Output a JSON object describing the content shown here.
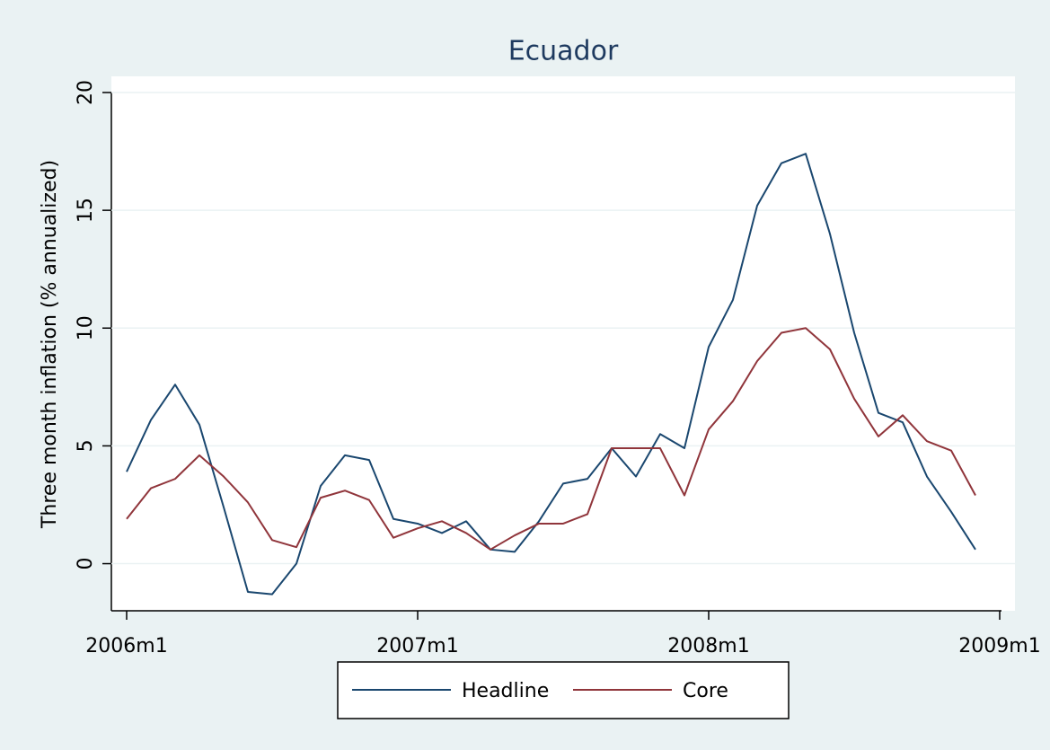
{
  "chart_data": {
    "type": "line",
    "title": "Ecuador",
    "ylabel": "Three month inflation (% annualized)",
    "x": [
      "2006m1",
      "2006m2",
      "2006m3",
      "2006m4",
      "2006m5",
      "2006m6",
      "2006m7",
      "2006m8",
      "2006m9",
      "2006m10",
      "2006m11",
      "2006m12",
      "2007m1",
      "2007m2",
      "2007m3",
      "2007m4",
      "2007m5",
      "2007m6",
      "2007m7",
      "2007m8",
      "2007m9",
      "2007m10",
      "2007m11",
      "2007m12",
      "2008m1",
      "2008m2",
      "2008m3",
      "2008m4",
      "2008m5",
      "2008m6",
      "2008m7",
      "2008m8",
      "2008m9",
      "2008m10",
      "2008m11",
      "2008m12"
    ],
    "series": [
      {
        "name": "Headline",
        "color": "#1a476f",
        "values": [
          3.9,
          6.1,
          7.6,
          5.9,
          2.4,
          -1.2,
          -1.3,
          0.0,
          3.3,
          4.6,
          4.4,
          1.9,
          1.7,
          1.3,
          1.8,
          0.6,
          0.5,
          1.8,
          3.4,
          3.6,
          4.9,
          3.7,
          5.5,
          4.9,
          9.2,
          11.2,
          15.2,
          17.0,
          17.4,
          14.0,
          9.8,
          6.4,
          6.0,
          3.7,
          2.2,
          0.6
        ]
      },
      {
        "name": "Core",
        "color": "#90353b",
        "values": [
          1.9,
          3.2,
          3.6,
          4.6,
          3.7,
          2.6,
          1.0,
          0.7,
          2.8,
          3.1,
          2.7,
          1.1,
          1.5,
          1.8,
          1.3,
          0.6,
          1.2,
          1.7,
          1.7,
          2.1,
          4.9,
          4.9,
          4.9,
          2.9,
          5.7,
          6.9,
          8.6,
          9.8,
          10.0,
          9.1,
          7.0,
          5.4,
          6.3,
          5.2,
          4.8,
          2.9
        ]
      }
    ],
    "xticks": [
      "2006m1",
      "2007m1",
      "2008m1",
      "2009m1"
    ],
    "ylim": [
      -2,
      20
    ],
    "yticks": [
      0,
      5,
      10,
      15,
      20
    ],
    "grid": true,
    "legend": "bottom"
  }
}
